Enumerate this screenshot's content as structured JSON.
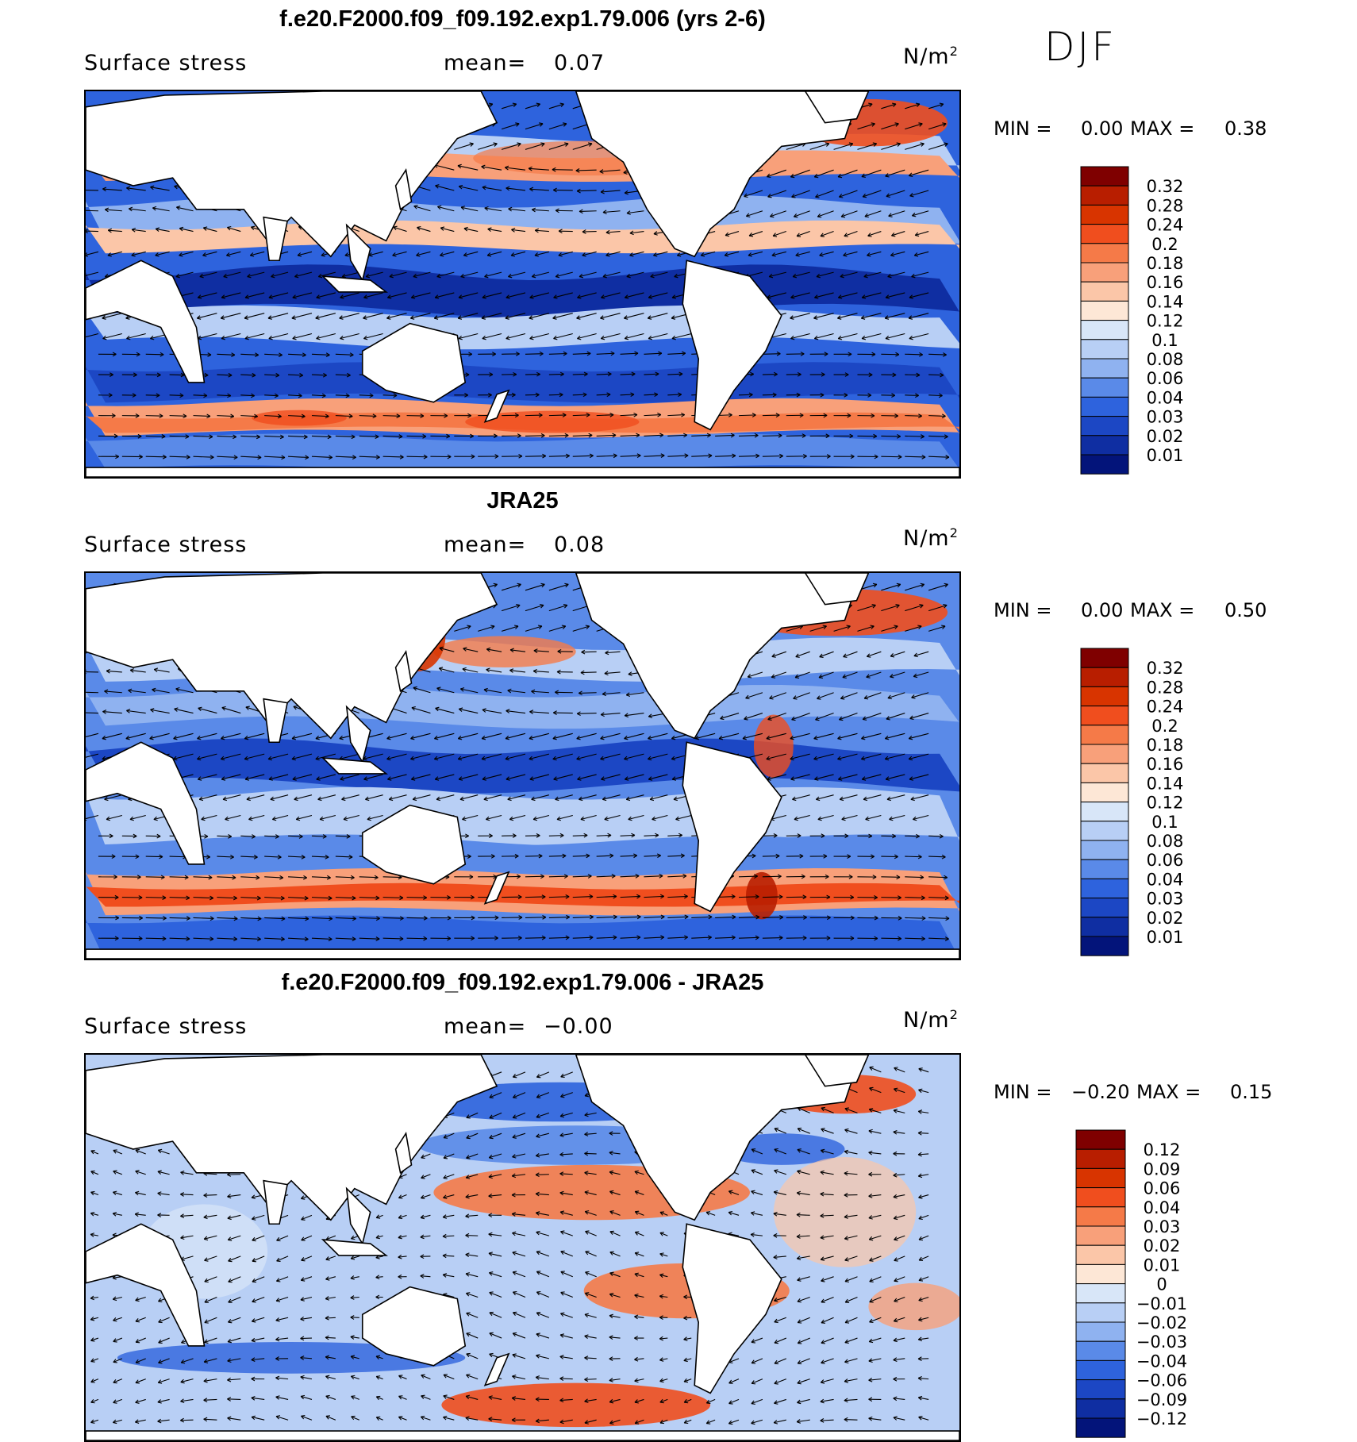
{
  "season": "DJF",
  "colors": {
    "continent": "#ffffff",
    "coast": "#000000",
    "high": "#e8502a",
    "low": "#1d4fd8"
  },
  "panels": [
    {
      "title": "f.e20.F2000.f09_f09.192.exp1.79.006 (yrs 2-6)",
      "variable": "Surface stress",
      "mean_label": "mean=",
      "mean_value": "0.07",
      "units_base": "N/m",
      "units_exp": "2",
      "min_label": "MIN =",
      "min_value": "0.00",
      "max_label": "MAX =",
      "max_value": "0.38",
      "colorbar": {
        "labels": [
          "0.32",
          "0.28",
          "0.24",
          "0.2",
          "0.18",
          "0.16",
          "0.14",
          "0.12",
          "0.1",
          "0.08",
          "0.06",
          "0.04",
          "0.03",
          "0.02",
          "0.01"
        ],
        "colors": [
          "#7f0000",
          "#b81e00",
          "#d83400",
          "#f04e1e",
          "#f57a48",
          "#f8a07a",
          "#fbc6a8",
          "#fde7d6",
          "#d8e6f8",
          "#b8cff5",
          "#8fb2f0",
          "#5a8ae8",
          "#2e63dd",
          "#1c47c4",
          "#0f2ea2",
          "#03147a"
        ]
      }
    },
    {
      "title": "JRA25",
      "variable": "Surface stress",
      "mean_label": "mean=",
      "mean_value": "0.08",
      "units_base": "N/m",
      "units_exp": "2",
      "min_label": "MIN =",
      "min_value": "0.00",
      "max_label": "MAX =",
      "max_value": "0.50",
      "colorbar": {
        "labels": [
          "0.32",
          "0.28",
          "0.24",
          "0.2",
          "0.18",
          "0.16",
          "0.14",
          "0.12",
          "0.1",
          "0.08",
          "0.06",
          "0.04",
          "0.03",
          "0.02",
          "0.01"
        ],
        "colors": [
          "#7f0000",
          "#b81e00",
          "#d83400",
          "#f04e1e",
          "#f57a48",
          "#f8a07a",
          "#fbc6a8",
          "#fde7d6",
          "#d8e6f8",
          "#b8cff5",
          "#8fb2f0",
          "#5a8ae8",
          "#2e63dd",
          "#1c47c4",
          "#0f2ea2",
          "#03147a"
        ]
      }
    },
    {
      "title": "f.e20.F2000.f09_f09.192.exp1.79.006 - JRA25",
      "variable": "Surface stress",
      "mean_label": "mean=",
      "mean_value": "−0.00",
      "units_base": "N/m",
      "units_exp": "2",
      "min_label": "MIN =",
      "min_value": "−0.20",
      "max_label": "MAX =",
      "max_value": "0.15",
      "colorbar": {
        "labels": [
          "0.12",
          "0.09",
          "0.06",
          "0.04",
          "0.03",
          "0.02",
          "0.01",
          "0",
          "−0.01",
          "−0.02",
          "−0.03",
          "−0.04",
          "−0.06",
          "−0.09",
          "−0.12"
        ],
        "colors": [
          "#7f0000",
          "#b81e00",
          "#d83400",
          "#f04e1e",
          "#f57a48",
          "#f8a07a",
          "#fbc6a8",
          "#fde7d6",
          "#d8e6f8",
          "#b8cff5",
          "#8fb2f0",
          "#5a8ae8",
          "#2e63dd",
          "#1c47c4",
          "#0f2ea2",
          "#03147a"
        ]
      }
    }
  ]
}
